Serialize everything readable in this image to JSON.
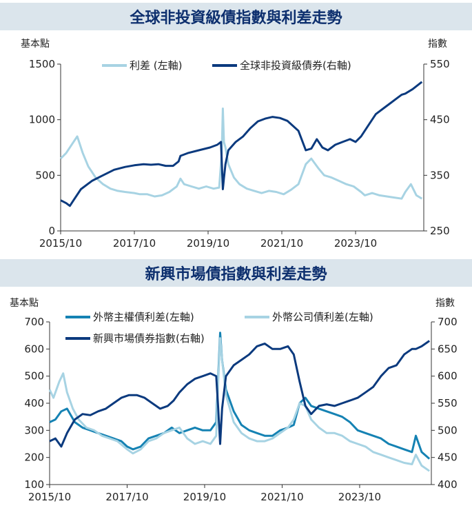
{
  "chart_data": [
    {
      "type": "line",
      "title": "全球非投資級債指數與利差走勢",
      "left_axis_label": "基本點",
      "right_axis_label": "指數",
      "left_ylim": [
        0,
        1500
      ],
      "left_ticks": [
        "0",
        "500",
        "1000",
        "1500"
      ],
      "right_ylim": [
        250,
        550
      ],
      "right_ticks": [
        "250",
        "350",
        "450",
        "550"
      ],
      "x_ticks": [
        "2015/10",
        "2017/10",
        "2019/10",
        "2021/10",
        "2023/10"
      ],
      "legend_position": "top-center",
      "grid": false,
      "series": [
        {
          "name": "利差 (左軸)",
          "axis": "left",
          "color": "#a7d3e3",
          "x": [
            2015.75,
            2015.9,
            2016.1,
            2016.2,
            2016.35,
            2016.5,
            2016.7,
            2016.9,
            2017.1,
            2017.3,
            2017.5,
            2017.75,
            2017.9,
            2018.1,
            2018.3,
            2018.5,
            2018.7,
            2018.9,
            2019.0,
            2019.1,
            2019.3,
            2019.5,
            2019.7,
            2019.9,
            2020.05,
            2020.12,
            2020.15,
            2020.18,
            2020.22,
            2020.3,
            2020.45,
            2020.6,
            2020.8,
            2021.0,
            2021.2,
            2021.4,
            2021.6,
            2021.8,
            2022.0,
            2022.2,
            2022.4,
            2022.55,
            2022.75,
            2022.9,
            2023.1,
            2023.3,
            2023.5,
            2023.7,
            2023.9,
            2024.0,
            2024.2,
            2024.4,
            2024.6,
            2024.8,
            2025.0,
            2025.1,
            2025.25,
            2025.4,
            2025.55
          ],
          "values": [
            650,
            700,
            800,
            850,
            700,
            580,
            480,
            420,
            380,
            360,
            350,
            340,
            330,
            330,
            310,
            320,
            350,
            400,
            470,
            420,
            400,
            380,
            400,
            380,
            390,
            700,
            1100,
            800,
            750,
            600,
            480,
            420,
            380,
            360,
            340,
            360,
            350,
            330,
            370,
            420,
            600,
            650,
            560,
            500,
            480,
            450,
            420,
            400,
            350,
            320,
            340,
            320,
            310,
            300,
            290,
            350,
            420,
            320,
            290
          ]
        },
        {
          "name": "全球非投資級債券(右軸)",
          "axis": "right",
          "color": "#0b3a7e",
          "x": [
            2015.75,
            2015.9,
            2016.0,
            2016.1,
            2016.3,
            2016.6,
            2016.9,
            2017.2,
            2017.5,
            2017.75,
            2018.0,
            2018.2,
            2018.4,
            2018.6,
            2018.8,
            2018.95,
            2019.0,
            2019.2,
            2019.5,
            2019.8,
            2020.0,
            2020.1,
            2020.15,
            2020.18,
            2020.22,
            2020.3,
            2020.5,
            2020.7,
            2020.9,
            2021.1,
            2021.3,
            2021.5,
            2021.7,
            2021.9,
            2022.0,
            2022.2,
            2022.4,
            2022.55,
            2022.7,
            2022.85,
            2023.0,
            2023.2,
            2023.4,
            2023.6,
            2023.75,
            2023.9,
            2024.1,
            2024.3,
            2024.5,
            2024.7,
            2024.9,
            2025.0,
            2025.1,
            2025.3,
            2025.55
          ],
          "values": [
            305,
            300,
            295,
            305,
            325,
            340,
            350,
            360,
            365,
            368,
            370,
            369,
            370,
            367,
            367,
            375,
            385,
            390,
            395,
            400,
            405,
            410,
            325,
            345,
            370,
            395,
            410,
            420,
            435,
            447,
            452,
            455,
            453,
            448,
            442,
            430,
            395,
            398,
            415,
            400,
            395,
            405,
            410,
            415,
            410,
            420,
            440,
            460,
            470,
            480,
            490,
            495,
            497,
            505,
            518
          ]
        }
      ]
    },
    {
      "type": "line",
      "title": "新興市場債指數與利差走勢",
      "left_axis_label": "基本點",
      "right_axis_label": "指數",
      "left_ylim": [
        100,
        700
      ],
      "left_ticks": [
        "100",
        "200",
        "300",
        "400",
        "500",
        "600",
        "700"
      ],
      "right_ylim": [
        400,
        700
      ],
      "right_ticks": [
        "400",
        "450",
        "500",
        "550",
        "600",
        "650",
        "700"
      ],
      "x_ticks": [
        "2015/10",
        "2017/10",
        "2019/10",
        "2021/10",
        "2023/10"
      ],
      "legend_position": "top-center",
      "grid": false,
      "series": [
        {
          "name": "外幣主權債利差(左軸)",
          "axis": "left",
          "color": "#1582b3",
          "x": [
            2015.75,
            2015.9,
            2016.05,
            2016.2,
            2016.4,
            2016.6,
            2016.8,
            2017.0,
            2017.2,
            2017.4,
            2017.6,
            2017.75,
            2017.9,
            2018.1,
            2018.3,
            2018.5,
            2018.7,
            2018.9,
            2019.1,
            2019.3,
            2019.5,
            2019.7,
            2019.9,
            2020.05,
            2020.1,
            2020.15,
            2020.2,
            2020.3,
            2020.5,
            2020.7,
            2020.9,
            2021.1,
            2021.3,
            2021.5,
            2021.7,
            2021.9,
            2022.05,
            2022.2,
            2022.35,
            2022.5,
            2022.7,
            2022.9,
            2023.1,
            2023.3,
            2023.5,
            2023.7,
            2023.9,
            2024.1,
            2024.3,
            2024.5,
            2024.7,
            2024.9,
            2025.1,
            2025.2,
            2025.35,
            2025.55
          ],
          "values": [
            330,
            340,
            370,
            380,
            330,
            310,
            300,
            290,
            280,
            270,
            260,
            240,
            230,
            240,
            270,
            280,
            290,
            310,
            290,
            300,
            310,
            300,
            300,
            330,
            500,
            660,
            560,
            450,
            370,
            320,
            300,
            290,
            280,
            280,
            300,
            310,
            320,
            400,
            420,
            390,
            380,
            370,
            360,
            350,
            330,
            300,
            290,
            280,
            270,
            250,
            240,
            230,
            220,
            280,
            220,
            195
          ]
        },
        {
          "name": "外幣公司債利差(左軸)",
          "axis": "left",
          "color": "#a7d3e3",
          "x": [
            2015.75,
            2015.85,
            2016.0,
            2016.1,
            2016.2,
            2016.35,
            2016.5,
            2016.7,
            2016.9,
            2017.1,
            2017.3,
            2017.5,
            2017.75,
            2017.9,
            2018.1,
            2018.3,
            2018.5,
            2018.7,
            2018.9,
            2019.1,
            2019.3,
            2019.5,
            2019.7,
            2019.9,
            2020.05,
            2020.1,
            2020.15,
            2020.2,
            2020.3,
            2020.5,
            2020.7,
            2020.9,
            2021.1,
            2021.3,
            2021.5,
            2021.7,
            2021.9,
            2022.05,
            2022.2,
            2022.35,
            2022.5,
            2022.7,
            2022.9,
            2023.1,
            2023.3,
            2023.5,
            2023.7,
            2023.9,
            2024.1,
            2024.3,
            2024.5,
            2024.7,
            2024.9,
            2025.1,
            2025.2,
            2025.35,
            2025.55
          ],
          "values": [
            450,
            420,
            480,
            510,
            440,
            380,
            340,
            310,
            300,
            280,
            270,
            260,
            230,
            215,
            230,
            260,
            270,
            290,
            300,
            310,
            270,
            250,
            260,
            250,
            280,
            480,
            640,
            560,
            430,
            330,
            290,
            270,
            260,
            260,
            270,
            290,
            310,
            340,
            400,
            390,
            340,
            310,
            290,
            290,
            280,
            260,
            250,
            240,
            220,
            210,
            200,
            190,
            180,
            175,
            210,
            170,
            150
          ]
        },
        {
          "name": "新興市場債券指數(右軸)",
          "axis": "right",
          "color": "#0b3a7e",
          "x": [
            2015.75,
            2015.9,
            2016.05,
            2016.2,
            2016.4,
            2016.6,
            2016.8,
            2017.0,
            2017.2,
            2017.4,
            2017.6,
            2017.8,
            2018.0,
            2018.2,
            2018.4,
            2018.6,
            2018.8,
            2018.95,
            2019.1,
            2019.3,
            2019.5,
            2019.7,
            2019.9,
            2020.05,
            2020.1,
            2020.15,
            2020.2,
            2020.3,
            2020.5,
            2020.7,
            2020.9,
            2021.1,
            2021.3,
            2021.5,
            2021.7,
            2021.9,
            2022.05,
            2022.2,
            2022.35,
            2022.5,
            2022.7,
            2022.9,
            2023.1,
            2023.3,
            2023.5,
            2023.7,
            2023.9,
            2024.1,
            2024.3,
            2024.5,
            2024.7,
            2024.9,
            2025.1,
            2025.2,
            2025.35,
            2025.55
          ],
          "values": [
            480,
            485,
            470,
            495,
            520,
            530,
            528,
            535,
            540,
            550,
            560,
            565,
            565,
            560,
            550,
            540,
            545,
            555,
            570,
            585,
            595,
            600,
            605,
            600,
            540,
            475,
            540,
            600,
            620,
            630,
            640,
            655,
            660,
            650,
            650,
            655,
            640,
            590,
            545,
            530,
            545,
            548,
            545,
            550,
            555,
            560,
            570,
            580,
            600,
            615,
            620,
            640,
            650,
            650,
            655,
            665
          ]
        }
      ]
    }
  ]
}
